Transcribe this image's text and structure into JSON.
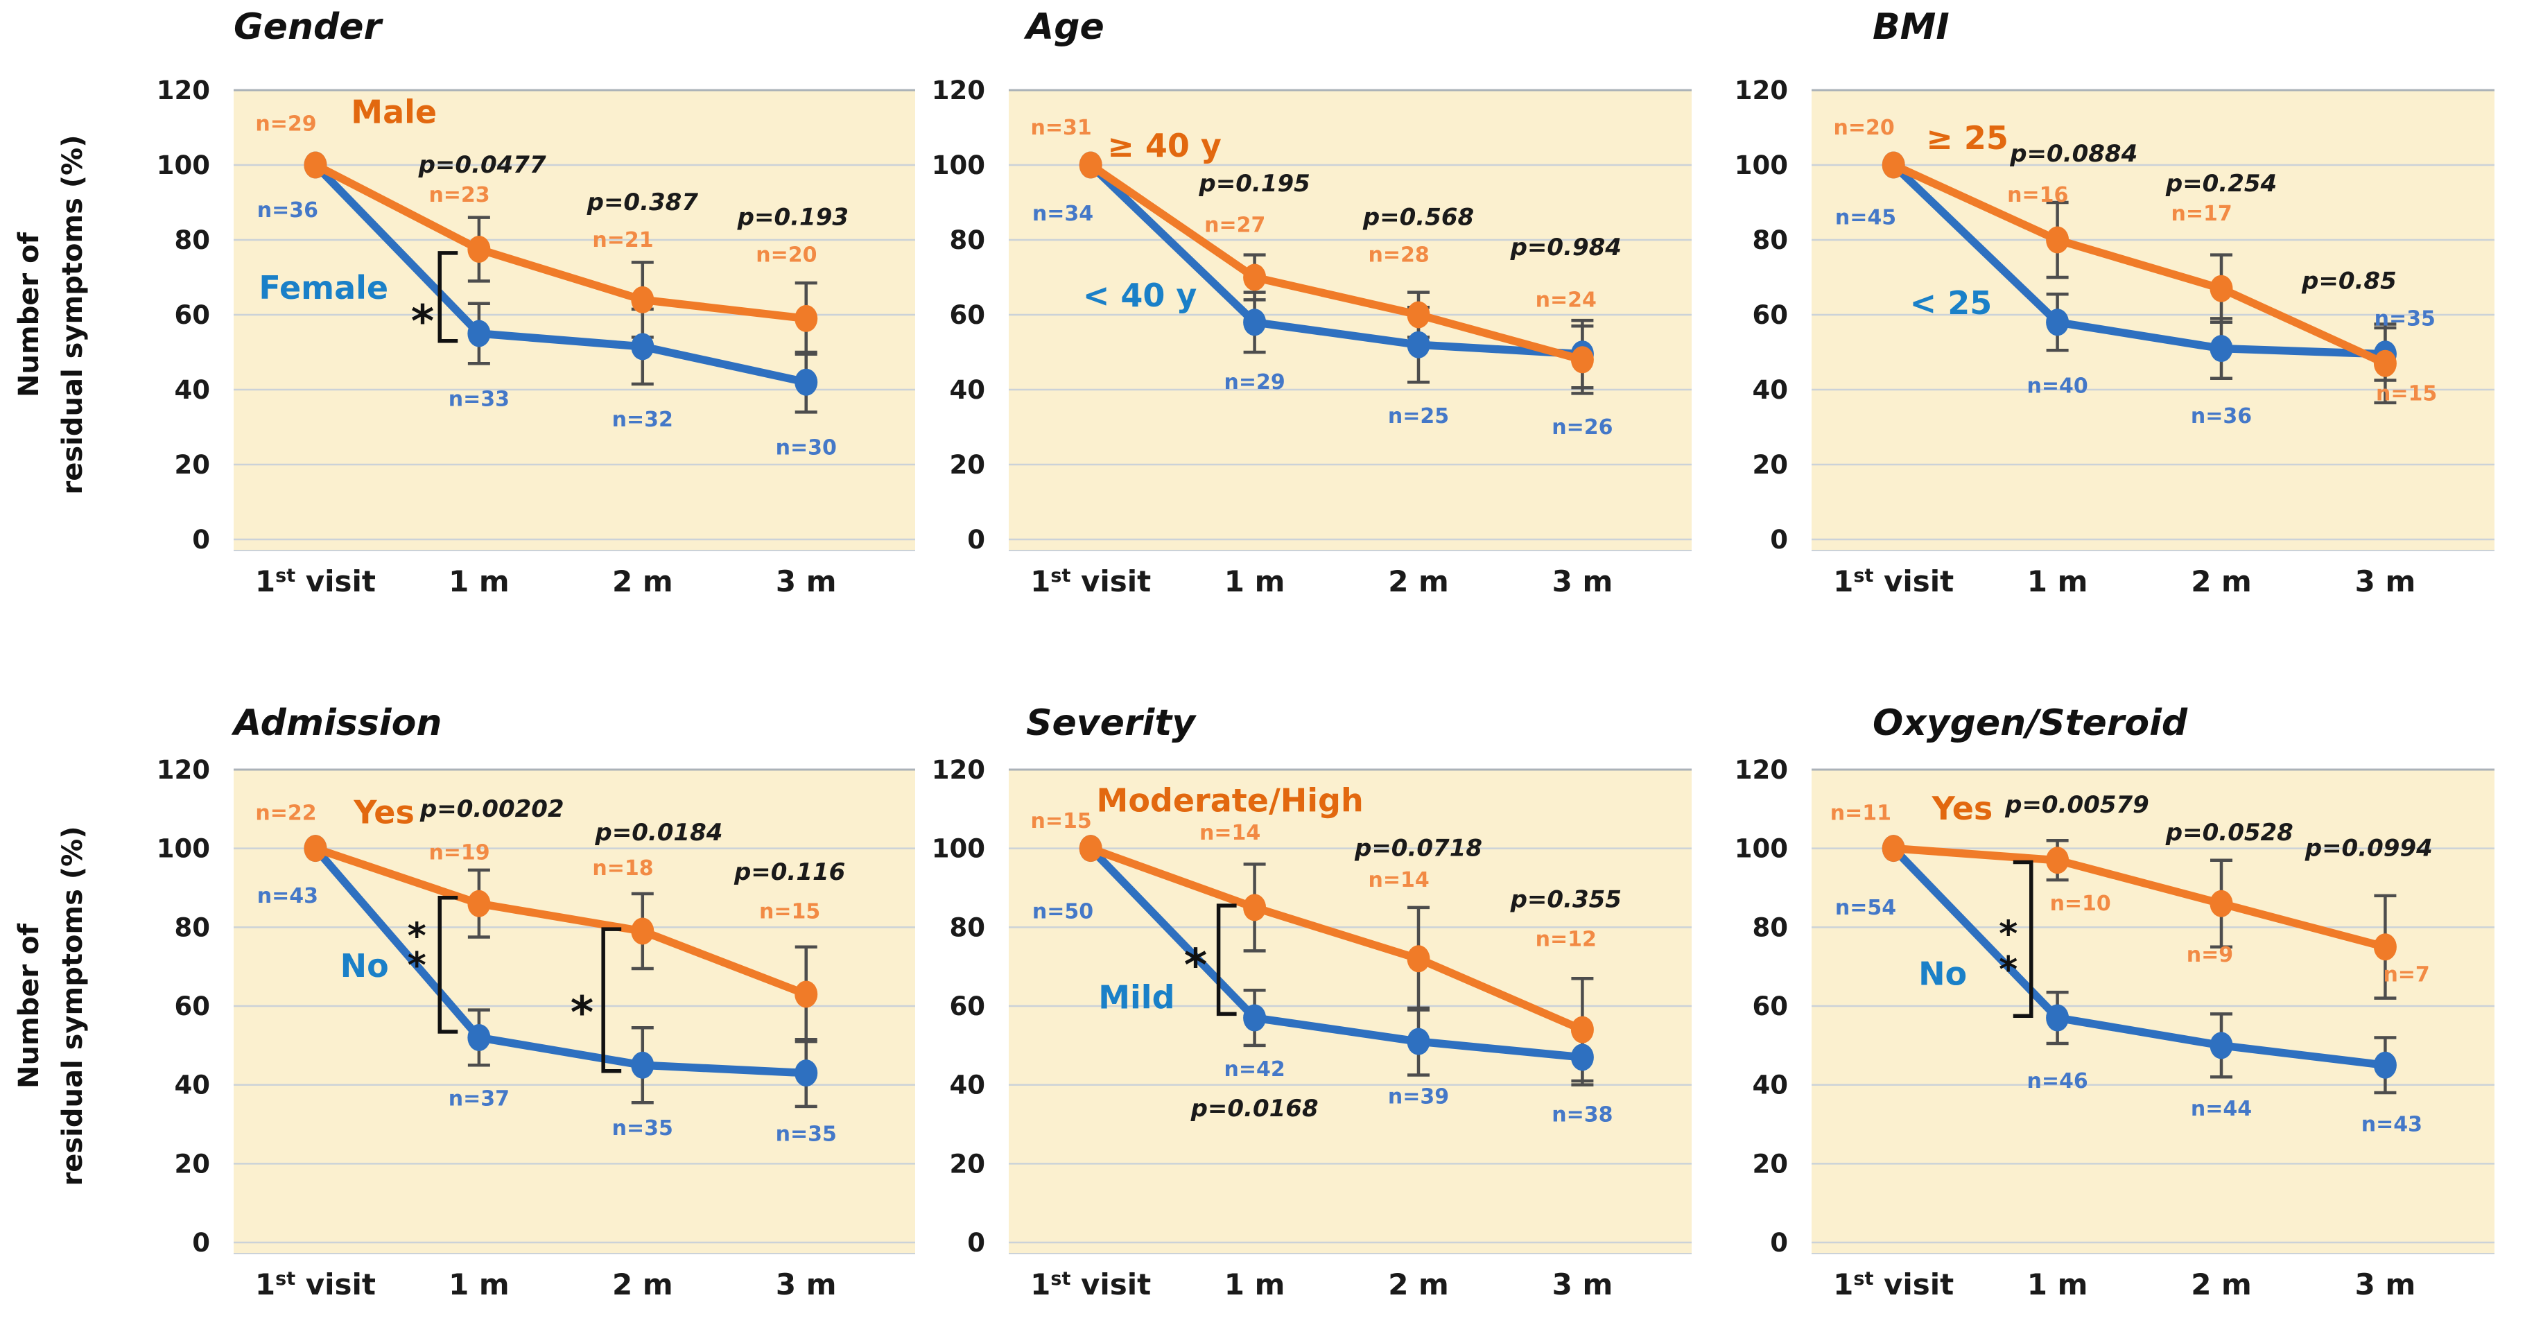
{
  "figure": {
    "ylabel_lines": [
      "Number of",
      "residual symptoms (%)"
    ],
    "x_categories": [
      "1st visit",
      "1 m",
      "2 m",
      "3 m"
    ],
    "y_ticks": [
      0,
      20,
      40,
      60,
      80,
      100,
      120
    ],
    "ylim": [
      0,
      120
    ],
    "colors": {
      "orange_line": "#F07B28",
      "orange_text": "#F28A44",
      "orange_group": "#E2680F",
      "blue_line": "#2E70C0",
      "blue_text": "#4478C8",
      "blue_group": "#1A80C8",
      "plot_bg": "#FBF0CF",
      "gridline": "#CBD2D8",
      "grid_top": "#ABB2B8",
      "error_bar": "#4D4D4D",
      "p_text": "#1A1A1A",
      "axis_text": "#1A1A1A",
      "title_text": "#111111",
      "sig_black": "#111111"
    }
  },
  "chart_data": [
    {
      "id": "gender",
      "type": "line",
      "title": "Gender",
      "x_categories": [
        "1st visit",
        "1 m",
        "2 m",
        "3 m"
      ],
      "ylim": [
        0,
        120
      ],
      "series": [
        {
          "name": "Male",
          "color": "orange",
          "values": [
            100,
            77.5,
            64,
            59
          ],
          "errors": [
            0,
            8.5,
            10,
            9.5
          ],
          "n": [
            29,
            23,
            21,
            20
          ],
          "n_labels": [
            {
              "t": "n=29",
              "x": -0.18,
              "y": 111
            },
            {
              "t": "n=23",
              "x": 0.88,
              "y": 92
            },
            {
              "t": "n=21",
              "x": 1.88,
              "y": 80
            },
            {
              "t": "n=20",
              "x": 2.88,
              "y": 76
            }
          ],
          "group_label": {
            "t": "Male",
            "x": 0.48,
            "y": 114
          }
        },
        {
          "name": "Female",
          "color": "blue",
          "values": [
            100,
            55,
            51.5,
            42
          ],
          "errors": [
            0,
            8,
            10,
            8
          ],
          "n": [
            36,
            33,
            32,
            30
          ],
          "n_labels": [
            {
              "t": "n=36",
              "x": -0.17,
              "y": 88
            },
            {
              "t": "n=33",
              "x": 1.0,
              "y": 37.5
            },
            {
              "t": "n=32",
              "x": 2.0,
              "y": 32
            },
            {
              "t": "n=30",
              "x": 3.0,
              "y": 24.5
            }
          ],
          "group_label": {
            "t": "Female",
            "x": 0.05,
            "y": 67
          }
        }
      ],
      "p_values": [
        {
          "t": "p=0.0477",
          "x": 1.02,
          "y": 100
        },
        {
          "t": "p=0.387",
          "x": 2.0,
          "y": 90
        },
        {
          "t": "p=0.193",
          "x": 2.92,
          "y": 86
        }
      ],
      "sig": {
        "stars": [
          {
            "t": "*",
            "x": 0.655,
            "y": 61,
            "size": 64
          }
        ],
        "brackets": [
          {
            "x": 0.76,
            "top": 76.5,
            "bottom": 53,
            "dir": 1
          }
        ]
      }
    },
    {
      "id": "age",
      "type": "line",
      "title": "Age",
      "x_categories": [
        "1st visit",
        "1 m",
        "2 m",
        "3 m"
      ],
      "ylim": [
        0,
        120
      ],
      "series": [
        {
          "name": "≥ 40 y",
          "color": "orange",
          "values": [
            100,
            70,
            60,
            48
          ],
          "errors": [
            0,
            6,
            6,
            9
          ],
          "n": [
            31,
            27,
            28,
            24
          ],
          "n_labels": [
            {
              "t": "n=31",
              "x": -0.18,
              "y": 110
            },
            {
              "t": "n=27",
              "x": 0.88,
              "y": 84
            },
            {
              "t": "n=28",
              "x": 1.88,
              "y": 76
            },
            {
              "t": "n=24",
              "x": 2.9,
              "y": 64
            }
          ],
          "group_label": {
            "t": "≥ 40 y",
            "x": 0.45,
            "y": 105
          }
        },
        {
          "name": "< 40 y",
          "color": "blue",
          "values": [
            100,
            58,
            52,
            49.5
          ],
          "errors": [
            0,
            8,
            10,
            9
          ],
          "n": [
            34,
            29,
            25,
            26
          ],
          "n_labels": [
            {
              "t": "n=34",
              "x": -0.17,
              "y": 87
            },
            {
              "t": "n=29",
              "x": 1.0,
              "y": 42
            },
            {
              "t": "n=25",
              "x": 2.0,
              "y": 33
            },
            {
              "t": "n=26",
              "x": 3.0,
              "y": 30
            }
          ],
          "group_label": {
            "t": "< 40 y",
            "x": 0.3,
            "y": 65
          }
        }
      ],
      "p_values": [
        {
          "t": "p=0.195",
          "x": 1.0,
          "y": 95
        },
        {
          "t": "p=0.568",
          "x": 2.0,
          "y": 86
        },
        {
          "t": "p=0.984",
          "x": 2.9,
          "y": 78
        }
      ],
      "sig": {
        "stars": [],
        "brackets": []
      }
    },
    {
      "id": "bmi",
      "type": "line",
      "title": "BMI",
      "x_categories": [
        "1st visit",
        "1 m",
        "2 m",
        "3 m"
      ],
      "ylim": [
        0,
        120
      ],
      "series": [
        {
          "name": "≥ 25",
          "color": "orange",
          "values": [
            100,
            80,
            67,
            47
          ],
          "errors": [
            0,
            10,
            9,
            10.5
          ],
          "n": [
            20,
            16,
            17,
            15
          ],
          "n_labels": [
            {
              "t": "n=20",
              "x": -0.18,
              "y": 110
            },
            {
              "t": "n=16",
              "x": 0.88,
              "y": 92
            },
            {
              "t": "n=17",
              "x": 1.88,
              "y": 87
            },
            {
              "t": "n=15",
              "x": 3.13,
              "y": 39
            }
          ],
          "group_label": {
            "t": "≥ 25",
            "x": 0.45,
            "y": 107
          }
        },
        {
          "name": "< 25",
          "color": "blue",
          "values": [
            100,
            58,
            51,
            49.5
          ],
          "errors": [
            0,
            7.5,
            8,
            7
          ],
          "n": [
            45,
            40,
            36,
            35
          ],
          "n_labels": [
            {
              "t": "n=45",
              "x": -0.17,
              "y": 86
            },
            {
              "t": "n=40",
              "x": 1.0,
              "y": 41
            },
            {
              "t": "n=36",
              "x": 2.0,
              "y": 33
            },
            {
              "t": "n=35",
              "x": 3.12,
              "y": 59
            }
          ],
          "group_label": {
            "t": "< 25",
            "x": 0.35,
            "y": 63
          }
        }
      ],
      "p_values": [
        {
          "t": "p=0.0884",
          "x": 1.1,
          "y": 103
        },
        {
          "t": "p=0.254",
          "x": 2.0,
          "y": 95
        },
        {
          "t": "p=0.85",
          "x": 2.78,
          "y": 69
        }
      ],
      "sig": {
        "stars": [],
        "brackets": []
      }
    },
    {
      "id": "admission",
      "type": "line",
      "title": "Admission",
      "x_categories": [
        "1st visit",
        "1 m",
        "2 m",
        "3 m"
      ],
      "ylim": [
        0,
        120
      ],
      "series": [
        {
          "name": "Yes",
          "color": "orange",
          "values": [
            100,
            86,
            79,
            63
          ],
          "errors": [
            0,
            8.5,
            9.5,
            12
          ],
          "n": [
            22,
            19,
            18,
            15
          ],
          "n_labels": [
            {
              "t": "n=22",
              "x": -0.18,
              "y": 109
            },
            {
              "t": "n=19",
              "x": 0.88,
              "y": 99
            },
            {
              "t": "n=18",
              "x": 1.88,
              "y": 95
            },
            {
              "t": "n=15",
              "x": 2.9,
              "y": 84
            }
          ],
          "group_label": {
            "t": "Yes",
            "x": 0.42,
            "y": 109
          }
        },
        {
          "name": "No",
          "color": "blue",
          "values": [
            100,
            52,
            45,
            43
          ],
          "errors": [
            0,
            7,
            9.5,
            8.5
          ],
          "n": [
            43,
            37,
            35,
            35
          ],
          "n_labels": [
            {
              "t": "n=43",
              "x": -0.17,
              "y": 88
            },
            {
              "t": "n=37",
              "x": 1.0,
              "y": 36.5
            },
            {
              "t": "n=35",
              "x": 2.0,
              "y": 29
            },
            {
              "t": "n=35",
              "x": 3.0,
              "y": 27.5
            }
          ],
          "group_label": {
            "t": "No",
            "x": 0.3,
            "y": 70
          }
        }
      ],
      "p_values": [
        {
          "t": "p=0.00202",
          "x": 1.08,
          "y": 110
        },
        {
          "t": "p=0.0184",
          "x": 2.1,
          "y": 104
        },
        {
          "t": "p=0.116",
          "x": 2.9,
          "y": 94
        }
      ],
      "sig": {
        "stars": [
          {
            "t": "*",
            "x": 0.62,
            "y": 80,
            "size": 52
          },
          {
            "t": "*",
            "x": 0.62,
            "y": 72.5,
            "size": 52
          },
          {
            "t": "*",
            "x": 1.63,
            "y": 61,
            "size": 64
          }
        ],
        "brackets": [
          {
            "x": 0.76,
            "top": 87.5,
            "bottom": 53.5,
            "dir": 1
          },
          {
            "x": 1.76,
            "top": 79.5,
            "bottom": 43.5,
            "dir": 1
          }
        ]
      }
    },
    {
      "id": "severity",
      "type": "line",
      "title": "Severity",
      "x_categories": [
        "1st visit",
        "1 m",
        "2 m",
        "3 m"
      ],
      "ylim": [
        0,
        120
      ],
      "series": [
        {
          "name": "Moderate/High",
          "color": "orange",
          "values": [
            100,
            85,
            72,
            54
          ],
          "errors": [
            0,
            11,
            13,
            13
          ],
          "n": [
            15,
            14,
            14,
            12
          ],
          "n_labels": [
            {
              "t": "n=15",
              "x": -0.18,
              "y": 107
            },
            {
              "t": "n=14",
              "x": 0.85,
              "y": 104
            },
            {
              "t": "n=14",
              "x": 1.88,
              "y": 92
            },
            {
              "t": "n=12",
              "x": 2.9,
              "y": 77
            }
          ],
          "group_label": {
            "t": "Moderate/High",
            "x": 0.85,
            "y": 112
          }
        },
        {
          "name": "Mild",
          "color": "blue",
          "values": [
            100,
            57,
            51,
            47
          ],
          "errors": [
            0,
            7,
            8.5,
            7
          ],
          "n": [
            50,
            42,
            39,
            38
          ],
          "n_labels": [
            {
              "t": "n=50",
              "x": -0.17,
              "y": 84
            },
            {
              "t": "n=42",
              "x": 1.0,
              "y": 44
            },
            {
              "t": "n=39",
              "x": 2.0,
              "y": 37
            },
            {
              "t": "n=38",
              "x": 3.0,
              "y": 32.5
            }
          ],
          "group_label": {
            "t": "Mild",
            "x": 0.28,
            "y": 62
          }
        }
      ],
      "p_values": [
        {
          "t": "p=0.0718",
          "x": 2.0,
          "y": 100
        },
        {
          "t": "p=0.355",
          "x": 2.9,
          "y": 87
        },
        {
          "t": "p=0.0168",
          "x": 1.0,
          "y": 34
        }
      ],
      "sig": {
        "stars": [
          {
            "t": "*",
            "x": 0.64,
            "y": 73,
            "size": 64
          }
        ],
        "brackets": [
          {
            "x": 0.78,
            "top": 85.5,
            "bottom": 58,
            "dir": 1
          }
        ]
      }
    },
    {
      "id": "oxygen-steroid",
      "type": "line",
      "title": "Oxygen/Steroid",
      "x_categories": [
        "1st visit",
        "1 m",
        "2 m",
        "3 m"
      ],
      "ylim": [
        0,
        120
      ],
      "series": [
        {
          "name": "Yes",
          "color": "orange",
          "values": [
            100,
            97,
            86,
            75
          ],
          "errors": [
            0,
            5,
            11,
            13
          ],
          "n": [
            11,
            10,
            9,
            7
          ],
          "n_labels": [
            {
              "t": "n=11",
              "x": -0.2,
              "y": 109
            },
            {
              "t": "n=10",
              "x": 1.14,
              "y": 86
            },
            {
              "t": "n=9",
              "x": 1.93,
              "y": 73
            },
            {
              "t": "n=7",
              "x": 3.13,
              "y": 68
            }
          ],
          "group_label": {
            "t": "Yes",
            "x": 0.42,
            "y": 110
          }
        },
        {
          "name": "No",
          "color": "blue",
          "values": [
            100,
            57,
            50,
            45
          ],
          "errors": [
            0,
            6.5,
            8,
            7
          ],
          "n": [
            54,
            46,
            44,
            43
          ],
          "n_labels": [
            {
              "t": "n=54",
              "x": -0.17,
              "y": 85
            },
            {
              "t": "n=46",
              "x": 1.0,
              "y": 41
            },
            {
              "t": "n=44",
              "x": 2.0,
              "y": 34
            },
            {
              "t": "n=43",
              "x": 3.04,
              "y": 30
            }
          ],
          "group_label": {
            "t": "No",
            "x": 0.3,
            "y": 68
          }
        }
      ],
      "p_values": [
        {
          "t": "p=0.00579",
          "x": 1.12,
          "y": 111
        },
        {
          "t": "p=0.0528",
          "x": 2.05,
          "y": 104
        },
        {
          "t": "p=0.0994",
          "x": 2.9,
          "y": 100
        }
      ],
      "sig": {
        "stars": [
          {
            "t": "*",
            "x": 0.7,
            "y": 80.5,
            "size": 52
          },
          {
            "t": "*",
            "x": 0.7,
            "y": 71.5,
            "size": 52
          }
        ],
        "brackets": [
          {
            "x": 0.84,
            "top": 96.5,
            "bottom": 57.5,
            "dir": -1
          }
        ]
      }
    }
  ]
}
